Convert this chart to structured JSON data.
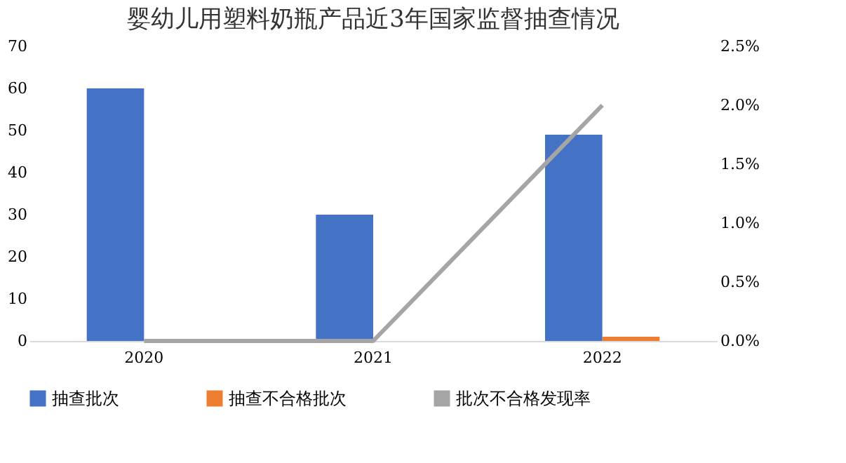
{
  "chart_data": {
    "type": "bar",
    "title": "婴幼儿用塑料奶瓶产品近3年国家监督抽查情况",
    "categories": [
      "2020",
      "2021",
      "2022"
    ],
    "series": [
      {
        "name": "抽查批次",
        "color": "#4472c4",
        "values": [
          60,
          30,
          49
        ]
      },
      {
        "name": "抽查不合格批次",
        "color": "#ed7d31",
        "values": [
          0,
          0,
          1
        ]
      },
      {
        "name": "批次不合格发现率",
        "color": "#a5a5a5",
        "type": "line",
        "axis": "y2",
        "values": [
          0,
          0,
          2.0
        ]
      }
    ],
    "ylim": [
      0,
      70
    ],
    "yticks": [
      0,
      10,
      20,
      30,
      40,
      50,
      60,
      70
    ],
    "y2lim": [
      0,
      2.5
    ],
    "y2ticks": [
      {
        "value": 0,
        "label": "0.0%"
      },
      {
        "value": 0.5,
        "label": "0.5%"
      },
      {
        "value": 1.0,
        "label": "1.0%"
      },
      {
        "value": 1.5,
        "label": "1.5%"
      },
      {
        "value": 2.0,
        "label": "2.0%"
      },
      {
        "value": 2.5,
        "label": "2.5%"
      }
    ],
    "grid": false,
    "legend": "bottom"
  }
}
